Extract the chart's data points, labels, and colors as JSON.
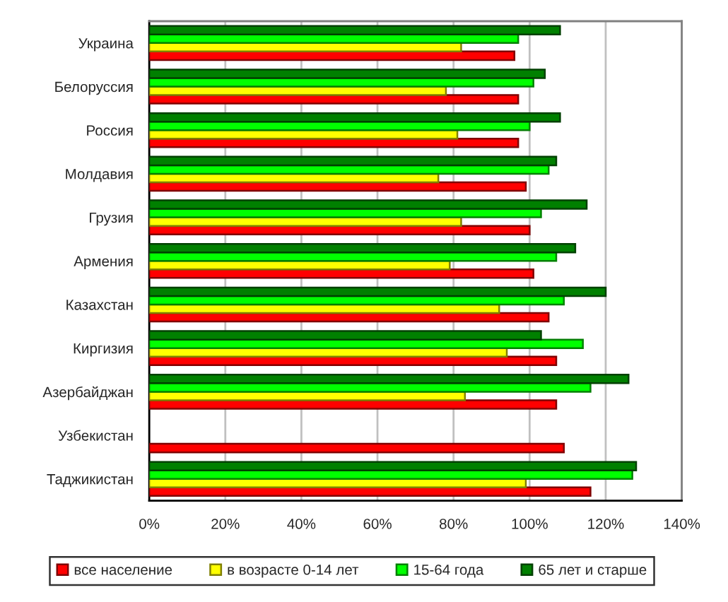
{
  "chart_data": {
    "type": "bar",
    "orientation": "horizontal",
    "categories": [
      "Украина",
      "Белоруссия",
      "Россия",
      "Молдавия",
      "Грузия",
      "Армения",
      "Казахстан",
      "Киргизия",
      "Азербайджан",
      "Узбекистан",
      "Таджикистан"
    ],
    "series": [
      {
        "name": "все население",
        "color": "#ff0000",
        "values": [
          96,
          97,
          97,
          99,
          100,
          101,
          105,
          107,
          107,
          109,
          116
        ]
      },
      {
        "name": "в возрасте 0-14 лет",
        "color": "#ffff00",
        "values": [
          82,
          78,
          81,
          76,
          82,
          79,
          92,
          94,
          83,
          null,
          99
        ]
      },
      {
        "name": "15-64 года",
        "color": "#00ff00",
        "values": [
          97,
          101,
          100,
          105,
          103,
          107,
          109,
          114,
          116,
          null,
          127
        ]
      },
      {
        "name": "65 лет и старше",
        "color": "#008000",
        "values": [
          108,
          104,
          108,
          107,
          115,
          112,
          120,
          103,
          126,
          null,
          128
        ]
      }
    ],
    "xlim": [
      0,
      140
    ],
    "xticks": [
      {
        "value": 0,
        "label": "0%"
      },
      {
        "value": 20,
        "label": "20%"
      },
      {
        "value": 40,
        "label": "40%"
      },
      {
        "value": 60,
        "label": "60%"
      },
      {
        "value": 80,
        "label": "80%"
      },
      {
        "value": 100,
        "label": "100%"
      },
      {
        "value": 120,
        "label": "120%"
      },
      {
        "value": 140,
        "label": "140%"
      }
    ],
    "grid": "x",
    "legend": "bottom"
  }
}
